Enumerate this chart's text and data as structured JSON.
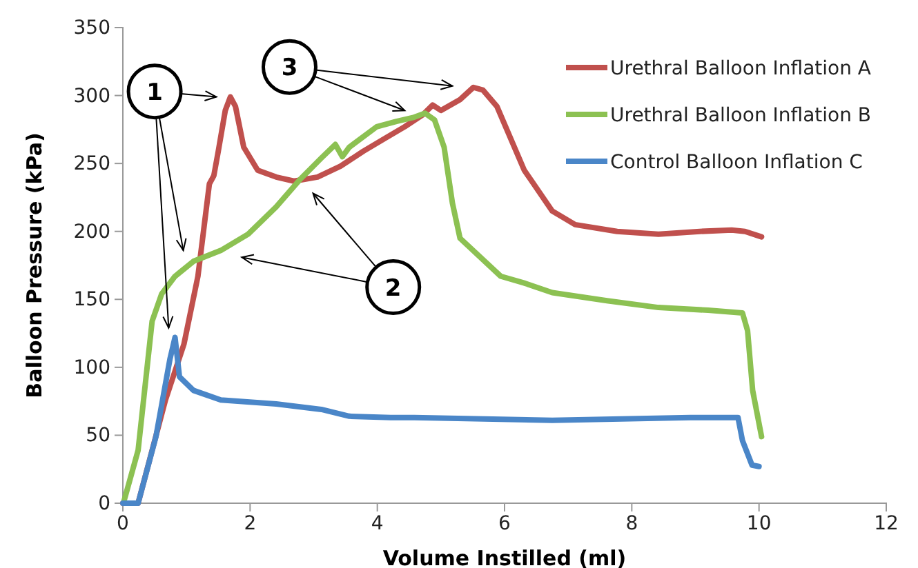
{
  "chart_data": {
    "type": "line",
    "xlabel": "Volume Instilled (ml)",
    "ylabel": "Balloon Pressure (kPa)",
    "xlim": [
      0,
      12
    ],
    "xticks": [
      0,
      2,
      4,
      6,
      8,
      10,
      12
    ],
    "ylim": [
      0,
      350
    ],
    "yticks": [
      0,
      50,
      100,
      150,
      200,
      250,
      300,
      350
    ],
    "grid": false,
    "legend": "top right",
    "marker": "none",
    "line_style": "solid",
    "annotations": [
      "1",
      "2",
      "3"
    ],
    "series": [
      {
        "name": "Urethral Balloon Inflation A",
        "color": "#c0504d",
        "x": [
          0,
          0.24,
          0.67,
          0.96,
          1.18,
          1.36,
          1.43,
          1.5,
          1.61,
          1.69,
          1.77,
          1.9,
          2.12,
          2.41,
          2.69,
          3.06,
          3.42,
          3.78,
          4.14,
          4.43,
          4.72,
          4.87,
          5.0,
          5.3,
          5.51,
          5.66,
          5.88,
          6.31,
          6.75,
          7.11,
          7.77,
          8.42,
          9.07,
          9.57,
          9.78,
          10.04
        ],
        "values": [
          0,
          0,
          76,
          117,
          167,
          235,
          241,
          259,
          289,
          299,
          292,
          262,
          245,
          240,
          237,
          240,
          248,
          259,
          269,
          277,
          286,
          293,
          289,
          297,
          306,
          304,
          292,
          245,
          215,
          205,
          200,
          198,
          200,
          201,
          200,
          196
        ]
      },
      {
        "name": "Urethral Balloon Inflation B",
        "color": "#8cc152",
        "x": [
          0.02,
          0.24,
          0.46,
          0.61,
          0.82,
          1.11,
          1.54,
          1.97,
          2.41,
          2.78,
          3.12,
          3.34,
          3.45,
          3.56,
          3.99,
          4.3,
          4.58,
          4.75,
          4.9,
          5.05,
          5.18,
          5.3,
          5.94,
          6.31,
          6.75,
          7.61,
          8.42,
          9.2,
          9.74,
          9.82,
          9.9,
          10.04
        ],
        "values": [
          2,
          39,
          134,
          154,
          167,
          178,
          186,
          198,
          218,
          238,
          254,
          264,
          255,
          262,
          277,
          281,
          284,
          287,
          282,
          262,
          221,
          195,
          167,
          162,
          155,
          149,
          144,
          142,
          140,
          127,
          83,
          49
        ]
      },
      {
        "name": "Control Balloon Inflation C",
        "color": "#4a86c8",
        "x": [
          0,
          0.24,
          0.52,
          0.74,
          0.82,
          0.89,
          1.11,
          1.54,
          2.41,
          3.12,
          3.56,
          4.21,
          4.58,
          6.75,
          8.92,
          9.67,
          9.74,
          9.89,
          10.0
        ],
        "values": [
          0,
          0,
          49,
          106,
          122,
          93,
          83,
          76,
          73,
          69,
          64,
          63,
          63,
          61,
          63,
          63,
          46,
          28,
          27
        ]
      }
    ]
  }
}
